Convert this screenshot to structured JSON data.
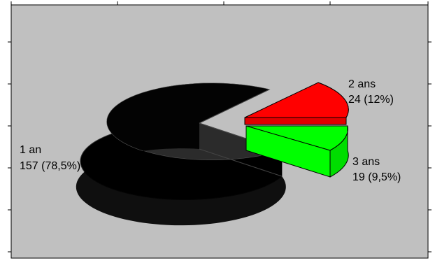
{
  "chart_data": {
    "type": "pie",
    "style": "3d-exploded",
    "slices": [
      {
        "key": "s1",
        "label": "1 an",
        "value": 157,
        "percent": "78,5%",
        "count_text": "157 (78,5%)",
        "color": "#000000"
      },
      {
        "key": "s2",
        "label": "2 ans",
        "value": 24,
        "percent": "12%",
        "count_text": "24 (12%)",
        "color": "#ff0000"
      },
      {
        "key": "s3",
        "label": "3 ans",
        "value": 19,
        "percent": "9,5%",
        "count_text": "19 (9,5%)",
        "color": "#00ff00"
      }
    ],
    "legend": "none",
    "background": "#c0c0c0",
    "grid": false
  }
}
